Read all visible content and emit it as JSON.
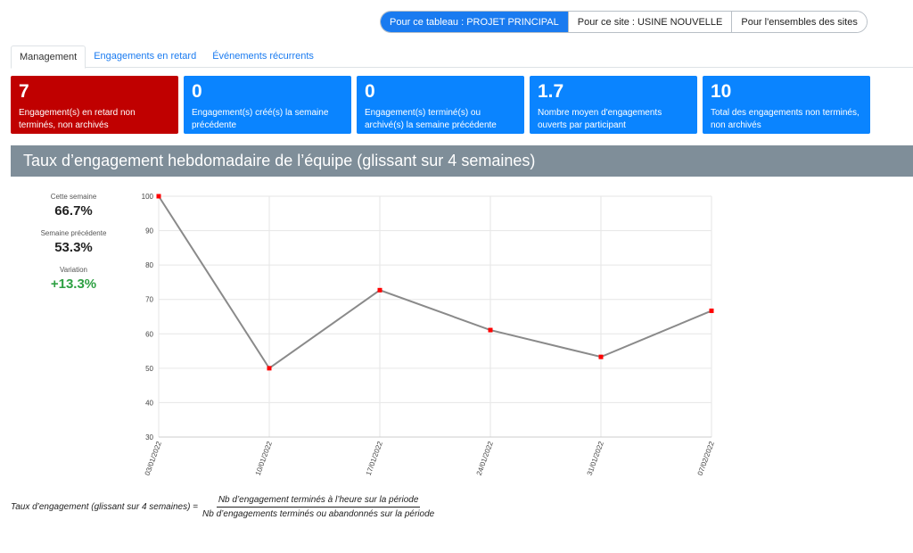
{
  "scope_buttons": [
    {
      "label": "Pour ce tableau : PROJET PRINCIPAL",
      "active": true
    },
    {
      "label": "Pour ce site : USINE NOUVELLE",
      "active": false
    },
    {
      "label": "Pour l'ensembles des sites",
      "active": false
    }
  ],
  "tabs": [
    {
      "label": "Management",
      "active": true
    },
    {
      "label": "Engagements en retard",
      "active": false
    },
    {
      "label": "Événements récurrents",
      "active": false
    }
  ],
  "kpis": [
    {
      "value": "7",
      "label": "Engagement(s) en retard non terminés, non archivés",
      "color": "#c00000"
    },
    {
      "value": "0",
      "label": "Engagement(s) créé(s) la semaine précédente",
      "color": "#0a84ff"
    },
    {
      "value": "0",
      "label": "Engagement(s) terminé(s) ou archivé(s) la semaine précédente",
      "color": "#0a84ff"
    },
    {
      "value": "1.7",
      "label": "Nombre moyen d'engagements ouverts par participant",
      "color": "#0a84ff"
    },
    {
      "value": "10",
      "label": "Total des engagements non terminés, non archivés",
      "color": "#0a84ff"
    }
  ],
  "section": {
    "title": "Taux d’engagement hebdomadaire de l’équipe (glissant sur 4 semaines)"
  },
  "stats": {
    "this_week_caption": "Cette semaine",
    "this_week_value": "66.7%",
    "prev_week_caption": "Semaine précédente",
    "prev_week_value": "53.3%",
    "variation_caption": "Variation",
    "variation_value": "+13.3%",
    "variation_color": "#2ea043"
  },
  "chart_data": {
    "type": "line",
    "x": [
      "03/01/2022",
      "10/01/2022",
      "17/01/2022",
      "24/01/2022",
      "31/01/2022",
      "07/02/2022"
    ],
    "series": [
      {
        "values": [
          100,
          50,
          72.7,
          61.1,
          53.3,
          66.7
        ],
        "line_color": "#8a8a8a",
        "marker_color": "#ff0000"
      }
    ],
    "ylim": [
      30,
      100
    ],
    "yticks": [
      30,
      40,
      50,
      60,
      70,
      80,
      90,
      100
    ],
    "grid": true
  },
  "formula": {
    "lhs": "Taux d’engagement (glissant sur 4 semaines) =",
    "numerator": "Nb d’engagement terminés à l’heure sur la période",
    "denominator": "Nb d’engagements terminés ou abandonnés sur la période"
  }
}
